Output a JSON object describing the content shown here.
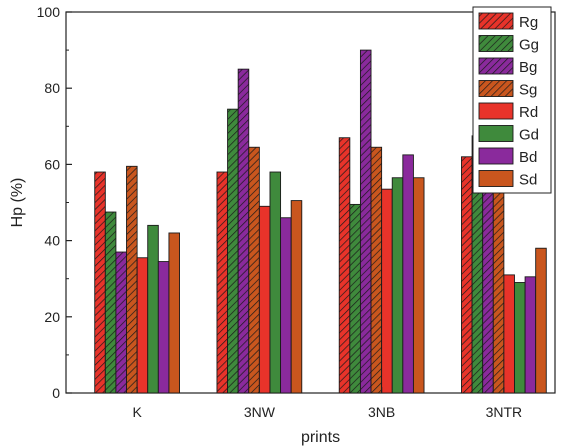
{
  "chart_data": {
    "type": "bar",
    "title": "",
    "xlabel": "prints",
    "ylabel": "Hp (%)",
    "ylim": [
      0,
      100
    ],
    "yticks": [
      0,
      20,
      40,
      60,
      80,
      100
    ],
    "categories": [
      "K",
      "3NW",
      "3NB",
      "3NTR"
    ],
    "legend_position": "top-right",
    "grid": false,
    "series": [
      {
        "name": "Rg",
        "color": "#e8332a",
        "hatched": true,
        "values": [
          58,
          58,
          67,
          62
        ]
      },
      {
        "name": "Gg",
        "color": "#3f8a3c",
        "hatched": true,
        "values": [
          47.5,
          74.5,
          49.5,
          67.5
        ]
      },
      {
        "name": "Bg",
        "color": "#8a2a9c",
        "hatched": true,
        "values": [
          37,
          85,
          90,
          69.5
        ]
      },
      {
        "name": "Sg",
        "color": "#c9561e",
        "hatched": true,
        "values": [
          59.5,
          64.5,
          64.5,
          66
        ]
      },
      {
        "name": "Rd",
        "color": "#e8332a",
        "hatched": false,
        "values": [
          35.5,
          49,
          53.5,
          31
        ]
      },
      {
        "name": "Gd",
        "color": "#3f8a3c",
        "hatched": false,
        "values": [
          44,
          58,
          56.5,
          29
        ]
      },
      {
        "name": "Bd",
        "color": "#8a2a9c",
        "hatched": false,
        "values": [
          34.5,
          46,
          62.5,
          30.5
        ]
      },
      {
        "name": "Sd",
        "color": "#c9561e",
        "hatched": false,
        "values": [
          42,
          50.5,
          56.5,
          38
        ]
      }
    ]
  }
}
